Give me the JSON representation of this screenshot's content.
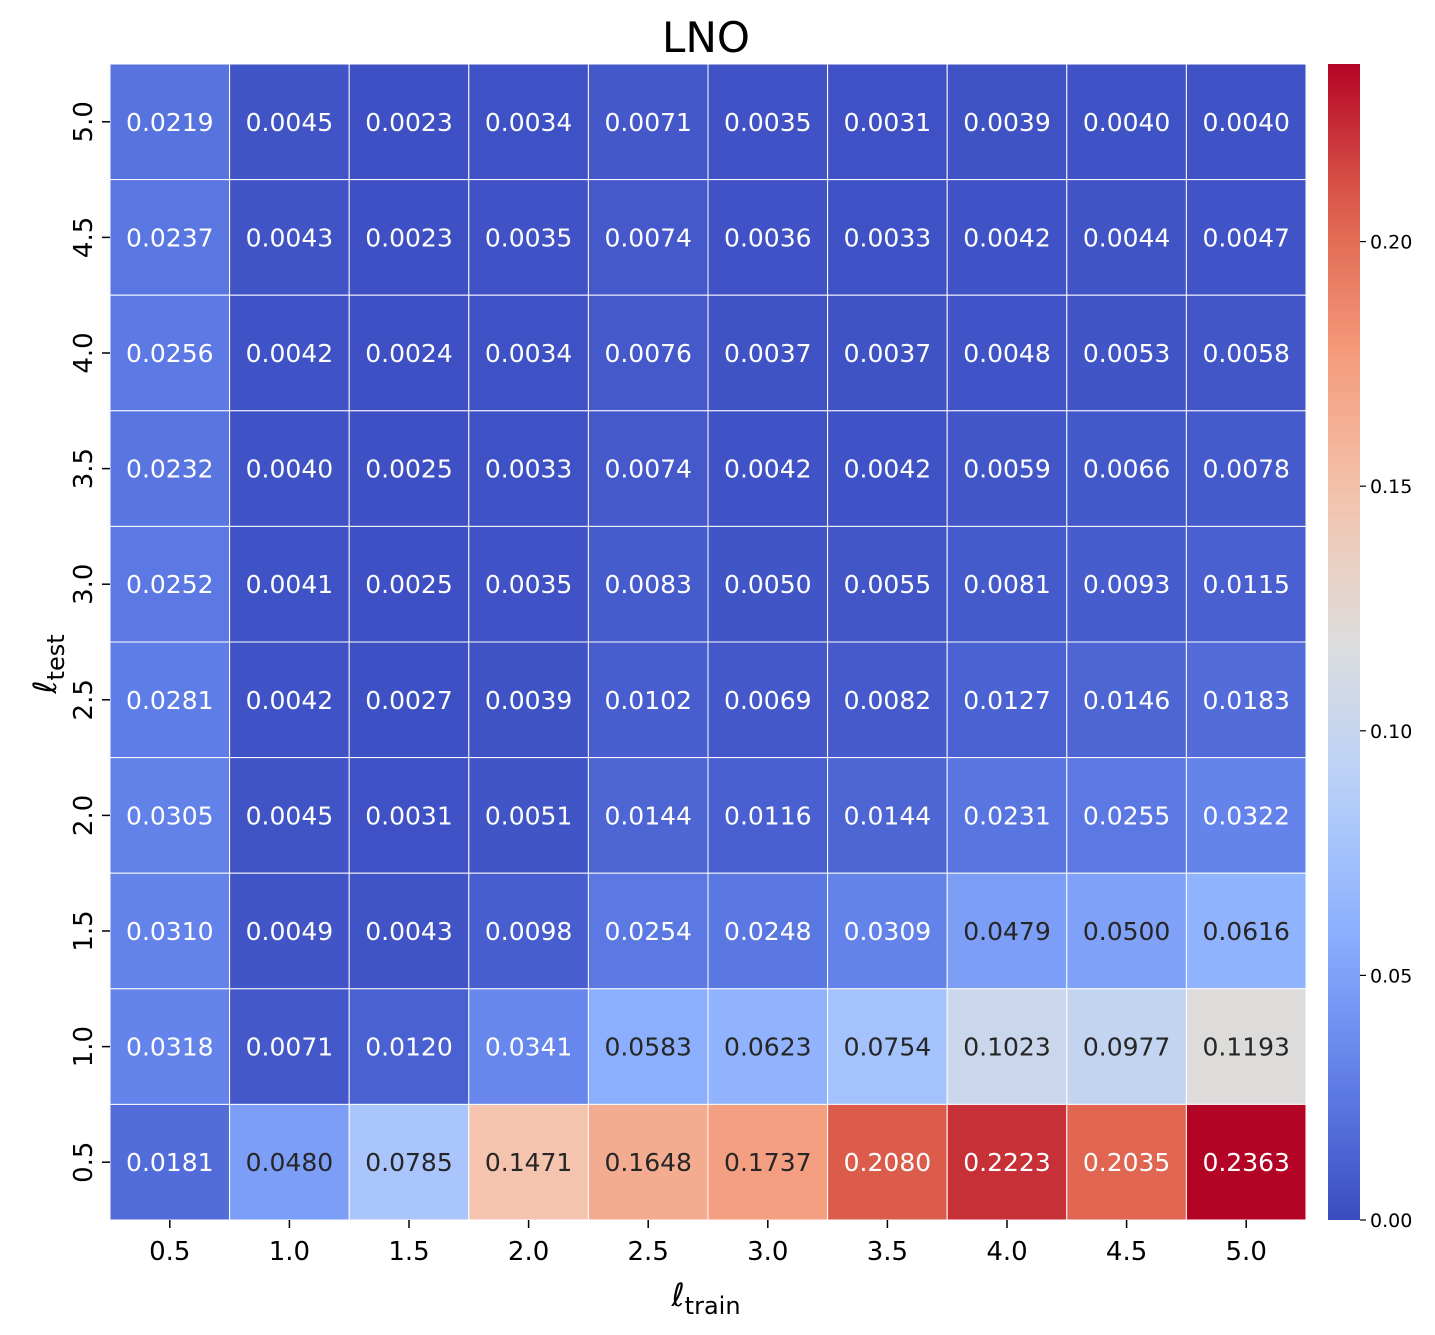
{
  "chart_data": {
    "type": "heatmap",
    "title": "LNO",
    "xlabel_base": "ℓ",
    "xlabel_sub": "train",
    "ylabel_base": "ℓ",
    "ylabel_sub": "test",
    "x_categories": [
      "0.5",
      "1.0",
      "1.5",
      "2.0",
      "2.5",
      "3.0",
      "3.5",
      "4.0",
      "4.5",
      "5.0"
    ],
    "y_categories_top_to_bottom": [
      "5.0",
      "4.5",
      "4.0",
      "3.5",
      "3.0",
      "2.5",
      "2.0",
      "1.5",
      "1.0",
      "0.5"
    ],
    "values_top_to_bottom": [
      [
        0.0219,
        0.0045,
        0.0023,
        0.0034,
        0.0071,
        0.0035,
        0.0031,
        0.0039,
        0.004,
        0.004
      ],
      [
        0.0237,
        0.0043,
        0.0023,
        0.0035,
        0.0074,
        0.0036,
        0.0033,
        0.0042,
        0.0044,
        0.0047
      ],
      [
        0.0256,
        0.0042,
        0.0024,
        0.0034,
        0.0076,
        0.0037,
        0.0037,
        0.0048,
        0.0053,
        0.0058
      ],
      [
        0.0232,
        0.004,
        0.0025,
        0.0033,
        0.0074,
        0.0042,
        0.0042,
        0.0059,
        0.0066,
        0.0078
      ],
      [
        0.0252,
        0.0041,
        0.0025,
        0.0035,
        0.0083,
        0.005,
        0.0055,
        0.0081,
        0.0093,
        0.0115
      ],
      [
        0.0281,
        0.0042,
        0.0027,
        0.0039,
        0.0102,
        0.0069,
        0.0082,
        0.0127,
        0.0146,
        0.0183
      ],
      [
        0.0305,
        0.0045,
        0.0031,
        0.0051,
        0.0144,
        0.0116,
        0.0144,
        0.0231,
        0.0255,
        0.0322
      ],
      [
        0.031,
        0.0049,
        0.0043,
        0.0098,
        0.0254,
        0.0248,
        0.0309,
        0.0479,
        0.05,
        0.0616
      ],
      [
        0.0318,
        0.0071,
        0.012,
        0.0341,
        0.0583,
        0.0623,
        0.0754,
        0.1023,
        0.0977,
        0.1193
      ],
      [
        0.0181,
        0.048,
        0.0785,
        0.1471,
        0.1648,
        0.1737,
        0.208,
        0.2223,
        0.2035,
        0.2363
      ]
    ],
    "value_format_decimals": 4,
    "colorbar": {
      "colormap": "coolwarm",
      "range": [
        0,
        0.2363
      ],
      "ticks": [
        0.0,
        0.05,
        0.1,
        0.15,
        0.2
      ],
      "tick_labels": [
        "0.00",
        "0.05",
        "0.10",
        "0.15",
        "0.20"
      ]
    },
    "grid": true,
    "colors": {
      "cell_border": "#ffffff",
      "text_dark": "#262626",
      "text_light": "#ffffff",
      "axis_text": "#000000"
    }
  }
}
